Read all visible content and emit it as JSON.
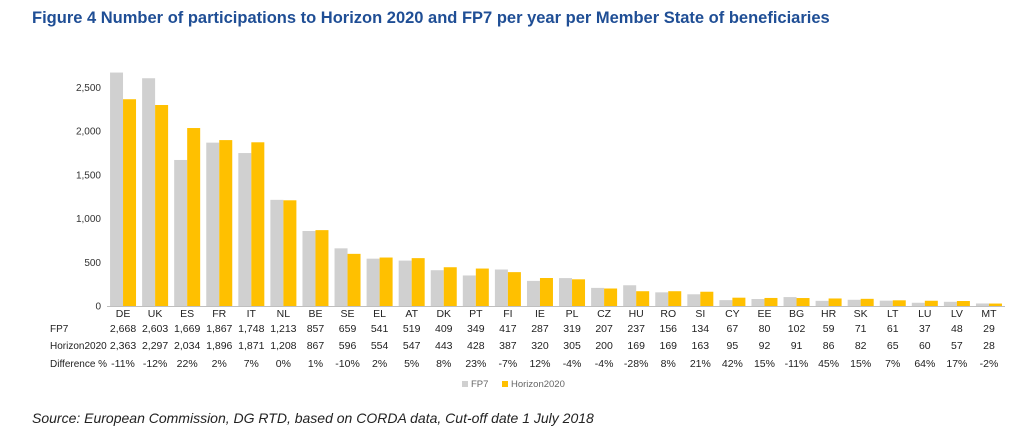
{
  "title": "Figure 4 Number of participations to Horizon 2020 and FP7 per year per Member State of beneficiaries",
  "source": "Source: European Commission, DG RTD, based on CORDA data, Cut-off date 1 July 2018",
  "colors": {
    "fp7": "#d0d0d0",
    "h2020": "#ffc000",
    "axis": "#bfbfbf",
    "text": "#222222",
    "title": "#1f4e95"
  },
  "chart_data": {
    "type": "bar",
    "title": "Figure 4 Number of participations to Horizon 2020 and FP7 per year per Member State of beneficiaries",
    "xlabel": "",
    "ylabel": "",
    "ylim": [
      0,
      2800
    ],
    "yticks": [
      0,
      500,
      1000,
      1500,
      2000,
      2500
    ],
    "ytick_labels": [
      "0",
      "500",
      "1,000",
      "1,500",
      "2,000",
      "2,500"
    ],
    "grid": false,
    "legend_position": "bottom-right",
    "categories": [
      "DE",
      "UK",
      "ES",
      "FR",
      "IT",
      "NL",
      "BE",
      "SE",
      "EL",
      "AT",
      "DK",
      "PT",
      "FI",
      "IE",
      "PL",
      "CZ",
      "HU",
      "RO",
      "SI",
      "CY",
      "EE",
      "BG",
      "HR",
      "SK",
      "LT",
      "LU",
      "LV",
      "MT"
    ],
    "series": [
      {
        "name": "FP7",
        "row_label": "FP7",
        "values": [
          2668,
          2603,
          1669,
          1867,
          1748,
          1213,
          857,
          659,
          541,
          519,
          409,
          349,
          417,
          287,
          319,
          207,
          237,
          156,
          134,
          67,
          80,
          102,
          59,
          71,
          61,
          37,
          48,
          29
        ],
        "labels": [
          "2,668",
          "2,603",
          "1,669",
          "1,867",
          "1,748",
          "1,213",
          "857",
          "659",
          "541",
          "519",
          "409",
          "349",
          "417",
          "287",
          "319",
          "207",
          "237",
          "156",
          "134",
          "67",
          "80",
          "102",
          "59",
          "71",
          "61",
          "37",
          "48",
          "29"
        ]
      },
      {
        "name": "Horizon2020",
        "row_label": "Horizon2020",
        "values": [
          2363,
          2297,
          2034,
          1896,
          1871,
          1208,
          867,
          596,
          554,
          547,
          443,
          428,
          387,
          320,
          305,
          200,
          169,
          169,
          163,
          95,
          92,
          91,
          86,
          82,
          65,
          60,
          57,
          28
        ],
        "labels": [
          "2,363",
          "2,297",
          "2,034",
          "1,896",
          "1,871",
          "1,208",
          "867",
          "596",
          "554",
          "547",
          "443",
          "428",
          "387",
          "320",
          "305",
          "200",
          "169",
          "169",
          "163",
          "95",
          "92",
          "91",
          "86",
          "82",
          "65",
          "60",
          "57",
          "28"
        ]
      }
    ],
    "difference_row_label": "Difference %",
    "difference": [
      "-11%",
      "-12%",
      "22%",
      "2%",
      "7%",
      "0%",
      "1%",
      "-10%",
      "2%",
      "5%",
      "8%",
      "23%",
      "-7%",
      "12%",
      "-4%",
      "-4%",
      "-28%",
      "8%",
      "21%",
      "42%",
      "15%",
      "-11%",
      "45%",
      "15%",
      "7%",
      "64%",
      "17%",
      "-2%"
    ]
  }
}
